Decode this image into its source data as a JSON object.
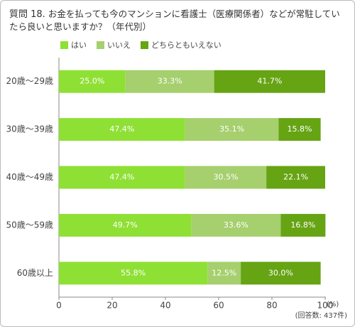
{
  "chart_data": {
    "type": "stacked_bar_horizontal",
    "question_label": "質問 18.",
    "title": "お金を払っても今のマンションに看護士（医療関係者）などが常駐していたら良いと思いますか？（年代別）",
    "categories": [
      "20歳〜29歳",
      "30歳〜39歳",
      "40歳〜49歳",
      "50歳〜59歳",
      "60歳以上"
    ],
    "series": [
      {
        "name": "はい",
        "color": "#8fe034",
        "values": [
          25.0,
          47.4,
          47.4,
          49.7,
          55.8
        ],
        "value_labels": [
          "25.0%",
          "47.4%",
          "47.4%",
          "49.7%",
          "55.8%"
        ]
      },
      {
        "name": "いいえ",
        "color": "#a6cf6e",
        "values": [
          33.3,
          35.1,
          30.5,
          33.6,
          12.5
        ],
        "value_labels": [
          "33.3%",
          "35.1%",
          "30.5%",
          "33.6%",
          "12.5%"
        ]
      },
      {
        "name": "どちらともいえない",
        "color": "#66a414",
        "values": [
          41.7,
          15.8,
          22.1,
          16.8,
          30.0
        ],
        "value_labels": [
          "41.7%",
          "15.8%",
          "22.1%",
          "16.8%",
          "30.0%"
        ]
      }
    ],
    "xlim": [
      0,
      100
    ],
    "xticks": [
      0,
      20,
      40,
      60,
      80,
      100
    ],
    "x_unit": "(%)",
    "note": "(回答数: 437件)"
  }
}
